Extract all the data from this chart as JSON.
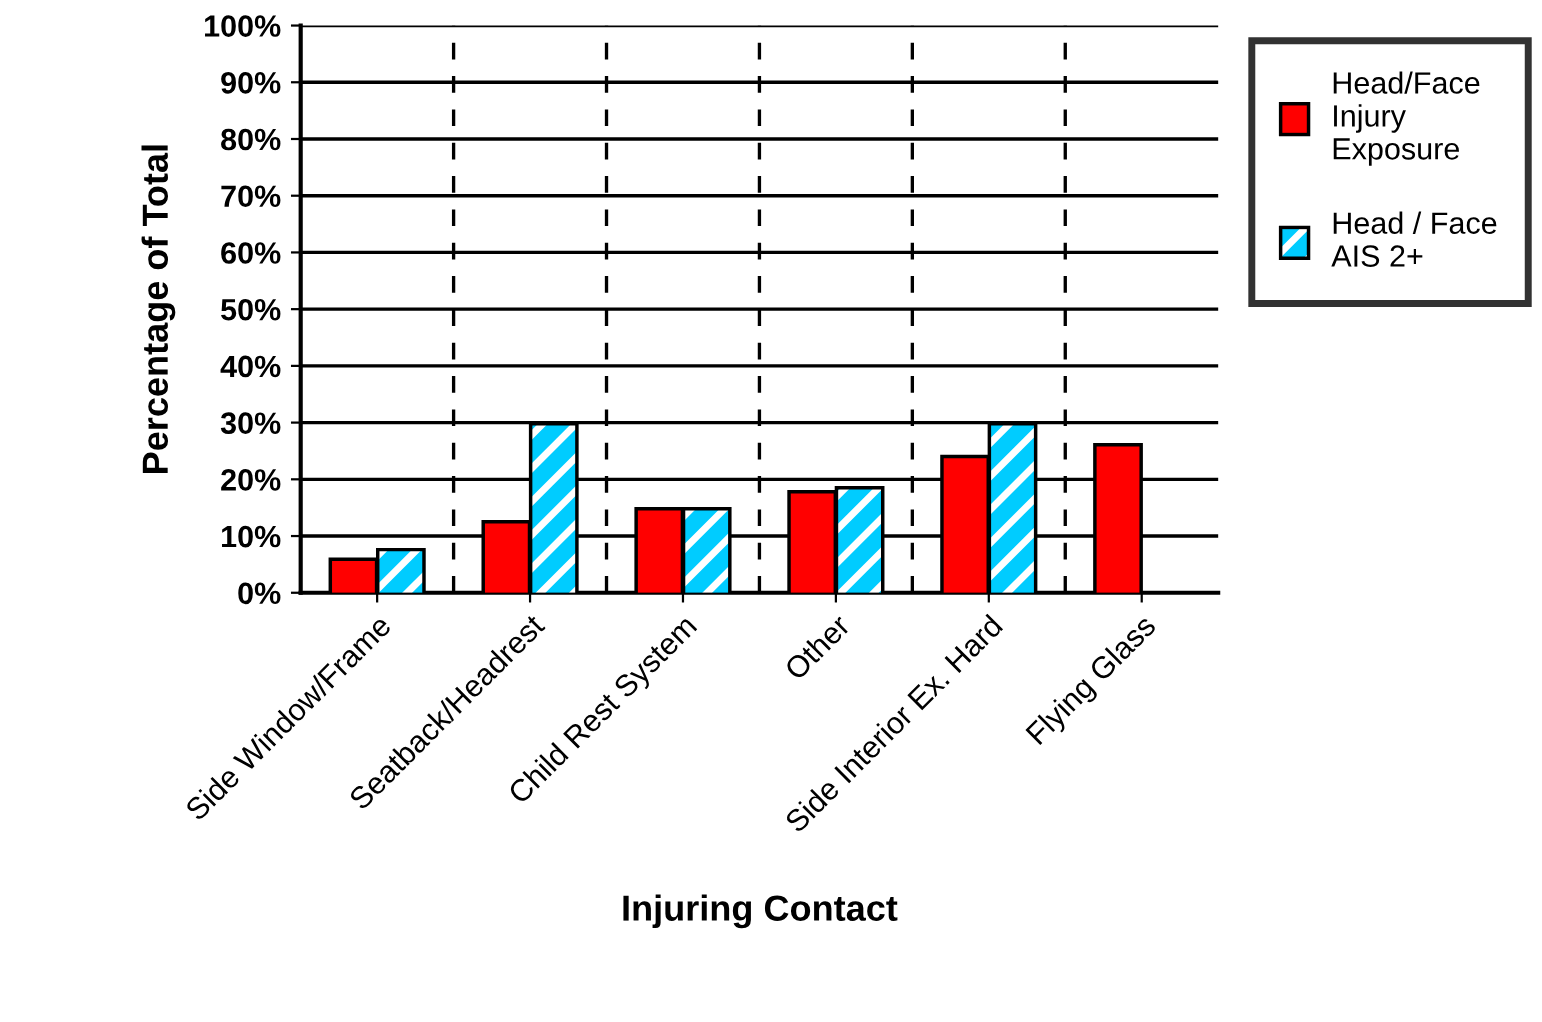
{
  "chart_data": {
    "type": "bar",
    "xlabel": "Injuring Contact",
    "ylabel": "Percentage of Total",
    "categories": [
      "Side Window/Frame",
      "Seatback/Headrest",
      "Child Rest System",
      "Other",
      "Side Interior Ex. Hard",
      "Flying Glass"
    ],
    "series": [
      {
        "name": "Head/Face\nInjury\nExposure",
        "color": "#ff0000",
        "values": [
          5.6,
          12.2,
          14.5,
          17.5,
          23.7,
          25.8
        ]
      },
      {
        "name": "Head / Face\nAIS 2+",
        "color": "#00ccff",
        "values": [
          7.3,
          29.5,
          14.5,
          18.2,
          29.5,
          null
        ]
      }
    ],
    "ylim": [
      0,
      100
    ],
    "yticks": [
      {
        "value": 0,
        "label": "0%"
      },
      {
        "value": 10,
        "label": "10%"
      },
      {
        "value": 20,
        "label": "20%"
      },
      {
        "value": 30,
        "label": "30%"
      },
      {
        "value": 40,
        "label": "40%"
      },
      {
        "value": 50,
        "label": "50%"
      },
      {
        "value": 60,
        "label": "60%"
      },
      {
        "value": 70,
        "label": "70%"
      },
      {
        "value": 80,
        "label": "80%"
      },
      {
        "value": 90,
        "label": "90%"
      },
      {
        "value": 100,
        "label": "100%"
      }
    ],
    "grid": true,
    "legend": "right"
  }
}
